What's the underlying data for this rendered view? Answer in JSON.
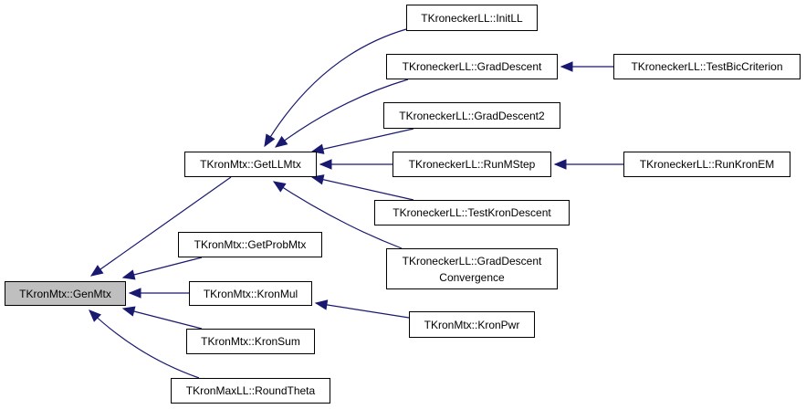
{
  "colors": {
    "edge": "#191970",
    "root_fill": "#bfbfbf",
    "node_fill": "#ffffff"
  },
  "nodes": {
    "genmtx": {
      "label": "TKronMtx::GenMtx",
      "root": true
    },
    "getllmtx": {
      "label": "TKronMtx::GetLLMtx"
    },
    "getprobmtx": {
      "label": "TKronMtx::GetProbMtx"
    },
    "kronmul": {
      "label": "TKronMtx::KronMul"
    },
    "kronsum": {
      "label": "TKronMtx::KronSum"
    },
    "roundtheta": {
      "label": "TKronMaxLL::RoundTheta"
    },
    "initll": {
      "label": "TKroneckerLL::InitLL"
    },
    "graddescent": {
      "label": "TKroneckerLL::GradDescent"
    },
    "graddescent2": {
      "label": "TKroneckerLL::GradDescent2"
    },
    "runmstep": {
      "label": "TKroneckerLL::RunMStep"
    },
    "testkrondescent": {
      "label": "TKroneckerLL::TestKronDescent"
    },
    "graddescentconv": {
      "label": "TKroneckerLL::GradDescent\nConvergence"
    },
    "kronpwr": {
      "label": "TKronMtx::KronPwr"
    },
    "testbiccriterion": {
      "label": "TKroneckerLL::TestBicCriterion"
    },
    "runkronem": {
      "label": "TKroneckerLL::RunKronEM"
    }
  },
  "edges": [
    {
      "from": "getllmtx",
      "to": "genmtx"
    },
    {
      "from": "getprobmtx",
      "to": "genmtx"
    },
    {
      "from": "kronmul",
      "to": "genmtx"
    },
    {
      "from": "kronsum",
      "to": "genmtx"
    },
    {
      "from": "roundtheta",
      "to": "genmtx"
    },
    {
      "from": "initll",
      "to": "getllmtx"
    },
    {
      "from": "graddescent",
      "to": "getllmtx"
    },
    {
      "from": "graddescent2",
      "to": "getllmtx"
    },
    {
      "from": "runmstep",
      "to": "getllmtx"
    },
    {
      "from": "testkrondescent",
      "to": "getllmtx"
    },
    {
      "from": "graddescentconv",
      "to": "getllmtx"
    },
    {
      "from": "kronpwr",
      "to": "kronmul"
    },
    {
      "from": "testbiccriterion",
      "to": "graddescent"
    },
    {
      "from": "runkronem",
      "to": "runmstep"
    }
  ]
}
